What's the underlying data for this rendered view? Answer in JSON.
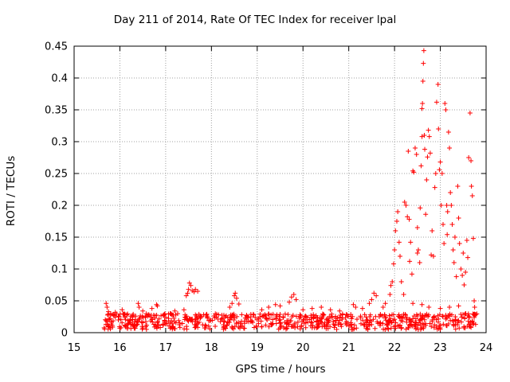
{
  "chart_data": {
    "type": "scatter",
    "title": "Day 211 of 2014, Rate Of TEC Index for receiver lpal",
    "xlabel": "GPS time / hours",
    "ylabel": "ROTI / TECUs",
    "xlim": [
      15,
      24
    ],
    "ylim": [
      0,
      0.45
    ],
    "xticks": [
      "15",
      "16",
      "17",
      "18",
      "19",
      "20",
      "21",
      "22",
      "23",
      "24"
    ],
    "yticks": [
      "0",
      "0.05",
      "0.1",
      "0.15",
      "0.2",
      "0.25",
      "0.3",
      "0.35",
      "0.4",
      "0.45"
    ],
    "grid": true,
    "marker": "plus",
    "color": "#ff0000",
    "points": [
      [
        15.7,
        0.046
      ],
      [
        15.72,
        0.04
      ],
      [
        15.75,
        0.033
      ],
      [
        15.8,
        0.03
      ],
      [
        15.9,
        0.032
      ],
      [
        16.05,
        0.036
      ],
      [
        16.15,
        0.028
      ],
      [
        16.4,
        0.046
      ],
      [
        16.42,
        0.04
      ],
      [
        16.5,
        0.034
      ],
      [
        16.7,
        0.038
      ],
      [
        16.8,
        0.044
      ],
      [
        16.82,
        0.042
      ],
      [
        17.1,
        0.03
      ],
      [
        17.2,
        0.034
      ],
      [
        17.4,
        0.036
      ],
      [
        17.45,
        0.058
      ],
      [
        17.48,
        0.062
      ],
      [
        17.5,
        0.068
      ],
      [
        17.52,
        0.078
      ],
      [
        17.55,
        0.074
      ],
      [
        17.58,
        0.066
      ],
      [
        17.62,
        0.064
      ],
      [
        17.65,
        0.068
      ],
      [
        17.7,
        0.065
      ],
      [
        18.4,
        0.04
      ],
      [
        18.45,
        0.046
      ],
      [
        18.5,
        0.058
      ],
      [
        18.52,
        0.062
      ],
      [
        18.55,
        0.054
      ],
      [
        18.6,
        0.045
      ],
      [
        19.1,
        0.036
      ],
      [
        19.25,
        0.04
      ],
      [
        19.4,
        0.044
      ],
      [
        19.5,
        0.042
      ],
      [
        19.7,
        0.048
      ],
      [
        19.75,
        0.056
      ],
      [
        19.8,
        0.06
      ],
      [
        19.85,
        0.052
      ],
      [
        20.0,
        0.036
      ],
      [
        20.2,
        0.038
      ],
      [
        20.4,
        0.04
      ],
      [
        20.6,
        0.036
      ],
      [
        20.8,
        0.034
      ],
      [
        21.1,
        0.044
      ],
      [
        21.15,
        0.04
      ],
      [
        21.3,
        0.038
      ],
      [
        21.45,
        0.046
      ],
      [
        21.5,
        0.052
      ],
      [
        21.55,
        0.062
      ],
      [
        21.6,
        0.058
      ],
      [
        21.75,
        0.04
      ],
      [
        21.8,
        0.046
      ],
      [
        21.9,
        0.06
      ],
      [
        21.92,
        0.074
      ],
      [
        21.95,
        0.08
      ],
      [
        21.98,
        0.108
      ],
      [
        22.0,
        0.13
      ],
      [
        22.02,
        0.16
      ],
      [
        22.05,
        0.175
      ],
      [
        22.07,
        0.19
      ],
      [
        22.1,
        0.142
      ],
      [
        22.12,
        0.12
      ],
      [
        22.15,
        0.08
      ],
      [
        22.2,
        0.06
      ],
      [
        22.22,
        0.205
      ],
      [
        22.25,
        0.2
      ],
      [
        22.28,
        0.182
      ],
      [
        22.3,
        0.285
      ],
      [
        22.32,
        0.178
      ],
      [
        22.33,
        0.112
      ],
      [
        22.35,
        0.142
      ],
      [
        22.38,
        0.092
      ],
      [
        22.4,
        0.254
      ],
      [
        22.42,
        0.252
      ],
      [
        22.45,
        0.29
      ],
      [
        22.48,
        0.28
      ],
      [
        22.5,
        0.165
      ],
      [
        22.5,
        0.125
      ],
      [
        22.52,
        0.13
      ],
      [
        22.55,
        0.11
      ],
      [
        22.56,
        0.196
      ],
      [
        22.58,
        0.262
      ],
      [
        22.6,
        0.308
      ],
      [
        22.6,
        0.352
      ],
      [
        22.61,
        0.36
      ],
      [
        22.62,
        0.395
      ],
      [
        22.63,
        0.423
      ],
      [
        22.64,
        0.443
      ],
      [
        22.65,
        0.31
      ],
      [
        22.66,
        0.288
      ],
      [
        22.68,
        0.186
      ],
      [
        22.7,
        0.24
      ],
      [
        22.72,
        0.276
      ],
      [
        22.74,
        0.318
      ],
      [
        22.76,
        0.308
      ],
      [
        22.78,
        0.282
      ],
      [
        22.8,
        0.122
      ],
      [
        22.82,
        0.16
      ],
      [
        22.85,
        0.12
      ],
      [
        22.88,
        0.228
      ],
      [
        22.9,
        0.25
      ],
      [
        22.92,
        0.362
      ],
      [
        22.95,
        0.39
      ],
      [
        22.96,
        0.32
      ],
      [
        22.98,
        0.256
      ],
      [
        23.0,
        0.268
      ],
      [
        23.02,
        0.2
      ],
      [
        23.04,
        0.25
      ],
      [
        23.06,
        0.17
      ],
      [
        23.08,
        0.14
      ],
      [
        23.1,
        0.36
      ],
      [
        23.12,
        0.35
      ],
      [
        23.14,
        0.2
      ],
      [
        23.15,
        0.154
      ],
      [
        23.16,
        0.19
      ],
      [
        23.18,
        0.315
      ],
      [
        23.2,
        0.29
      ],
      [
        23.22,
        0.22
      ],
      [
        23.24,
        0.2
      ],
      [
        23.26,
        0.17
      ],
      [
        23.28,
        0.13
      ],
      [
        23.3,
        0.11
      ],
      [
        23.32,
        0.15
      ],
      [
        23.35,
        0.088
      ],
      [
        23.38,
        0.23
      ],
      [
        23.4,
        0.18
      ],
      [
        23.42,
        0.14
      ],
      [
        23.45,
        0.1
      ],
      [
        23.48,
        0.09
      ],
      [
        23.5,
        0.125
      ],
      [
        23.52,
        0.075
      ],
      [
        23.55,
        0.095
      ],
      [
        23.58,
        0.145
      ],
      [
        23.6,
        0.118
      ],
      [
        23.62,
        0.275
      ],
      [
        23.65,
        0.345
      ],
      [
        23.67,
        0.27
      ],
      [
        23.68,
        0.23
      ],
      [
        23.7,
        0.215
      ],
      [
        23.72,
        0.148
      ],
      [
        23.74,
        0.05
      ],
      [
        23.75,
        0.04
      ],
      [
        23.4,
        0.042
      ],
      [
        23.2,
        0.04
      ],
      [
        22.4,
        0.046
      ],
      [
        22.6,
        0.044
      ],
      [
        22.75,
        0.04
      ],
      [
        23.0,
        0.038
      ],
      [
        23.55,
        0.03
      ]
    ],
    "dense_band": {
      "x_range": [
        15.65,
        23.8
      ],
      "y_range": [
        0.005,
        0.03
      ],
      "note_points_per_hour": 90
    }
  }
}
